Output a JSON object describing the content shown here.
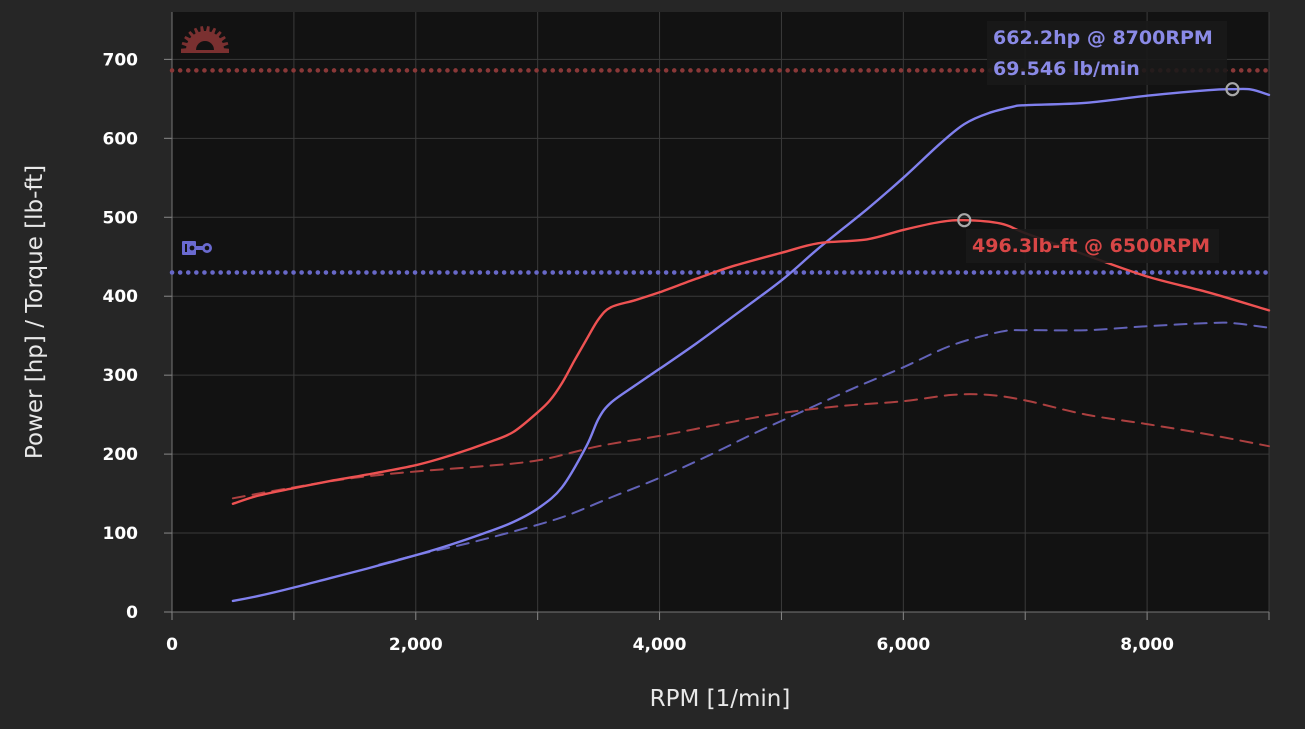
{
  "chart_data": {
    "type": "line",
    "xlabel": "RPM [1/min]",
    "ylabel": "Power [hp] / Torque [lb-ft]",
    "xlim": [
      0,
      9000
    ],
    "ylim": [
      0,
      760
    ],
    "x_ticks": [
      0,
      1000,
      2000,
      3000,
      4000,
      5000,
      6000,
      7000,
      8000,
      9000
    ],
    "x_tick_labels": [
      "0",
      "",
      "2,000",
      "",
      "4,000",
      "",
      "6,000",
      "",
      "8,000",
      ""
    ],
    "y_ticks": [
      0,
      100,
      200,
      300,
      400,
      500,
      600,
      700
    ],
    "y_tick_labels": [
      "0",
      "100",
      "200",
      "300",
      "400",
      "500",
      "600",
      "700"
    ],
    "grid": true,
    "colors": {
      "power": "#8080ee",
      "torque": "#ee5252",
      "power_compare": "#6262b8",
      "torque_compare": "#ac4040",
      "power_annotation": "#8a8ae6",
      "torque_annotation": "#d84646",
      "plot_bg": "#121212",
      "page_bg": "#262626"
    },
    "series": [
      {
        "key": "power",
        "style": "solid",
        "x": [
          500,
          700,
          1000,
          1300,
          1600,
          2000,
          2300,
          2600,
          2800,
          3000,
          3200,
          3400,
          3500,
          3600,
          3800,
          4000,
          4300,
          4600,
          5000,
          5300,
          5700,
          6000,
          6300,
          6500,
          6700,
          6900,
          7000,
          7500,
          8000,
          8500,
          8700,
          8850,
          9000
        ],
        "y": [
          14,
          20,
          31,
          43,
          55,
          72,
          86,
          102,
          114,
          131,
          158,
          210,
          245,
          265,
          287,
          308,
          340,
          374,
          420,
          460,
          510,
          550,
          593,
          618,
          632,
          640,
          642,
          645,
          654,
          661,
          662.2,
          662,
          655
        ]
      },
      {
        "key": "torque",
        "style": "solid",
        "x": [
          500,
          700,
          1000,
          1300,
          1600,
          2000,
          2300,
          2600,
          2800,
          3000,
          3100,
          3200,
          3300,
          3400,
          3500,
          3600,
          3800,
          4000,
          4300,
          4600,
          5000,
          5300,
          5700,
          6000,
          6300,
          6500,
          6800,
          7000,
          7500,
          8000,
          8500,
          9000
        ],
        "y": [
          137,
          147,
          157,
          166,
          174,
          186,
          199,
          215,
          228,
          253,
          268,
          290,
          318,
          345,
          371,
          386,
          395,
          405,
          422,
          438,
          455,
          467,
          472,
          484,
          494,
          496.3,
          492,
          480,
          452,
          425,
          405,
          382
        ]
      },
      {
        "key": "power_compare",
        "style": "dashed",
        "x": [
          1700,
          2000,
          2400,
          2800,
          3200,
          3600,
          4000,
          4400,
          4800,
          5200,
          5600,
          6000,
          6400,
          6800,
          7000,
          7500,
          8000,
          8500,
          8700,
          9000
        ],
        "y": [
          60,
          72,
          86,
          102,
          120,
          145,
          170,
          198,
          228,
          256,
          284,
          310,
          338,
          355,
          357,
          357,
          362,
          366,
          366,
          360
        ]
      },
      {
        "key": "torque_compare",
        "style": "dashed",
        "x": [
          500,
          1000,
          1500,
          2000,
          2500,
          3000,
          3500,
          4000,
          4500,
          5000,
          5500,
          6000,
          6400,
          6700,
          7000,
          7500,
          8000,
          8500,
          9000
        ],
        "y": [
          144,
          158,
          170,
          178,
          184,
          192,
          210,
          223,
          238,
          252,
          261,
          267,
          275,
          275,
          268,
          250,
          238,
          225,
          210
        ]
      }
    ],
    "reference_lines": [
      {
        "key": "power_limit",
        "y": 686,
        "color": "#8a3838"
      },
      {
        "key": "torque_limit",
        "y": 430,
        "color": "#6868c8"
      }
    ],
    "peak_markers": [
      {
        "key": "power_peak",
        "x": 8700,
        "y": 662.2
      },
      {
        "key": "torque_peak",
        "x": 6500,
        "y": 496.3
      }
    ],
    "annotations": {
      "power_peak": "662.2hp @ 8700RPM",
      "power_secondary": "69.546 lb/min",
      "torque_peak": "496.3lb-ft @ 6500RPM"
    },
    "icons": {
      "power_limit_icon": "gauge-icon",
      "torque_limit_icon": "piston-icon"
    }
  }
}
